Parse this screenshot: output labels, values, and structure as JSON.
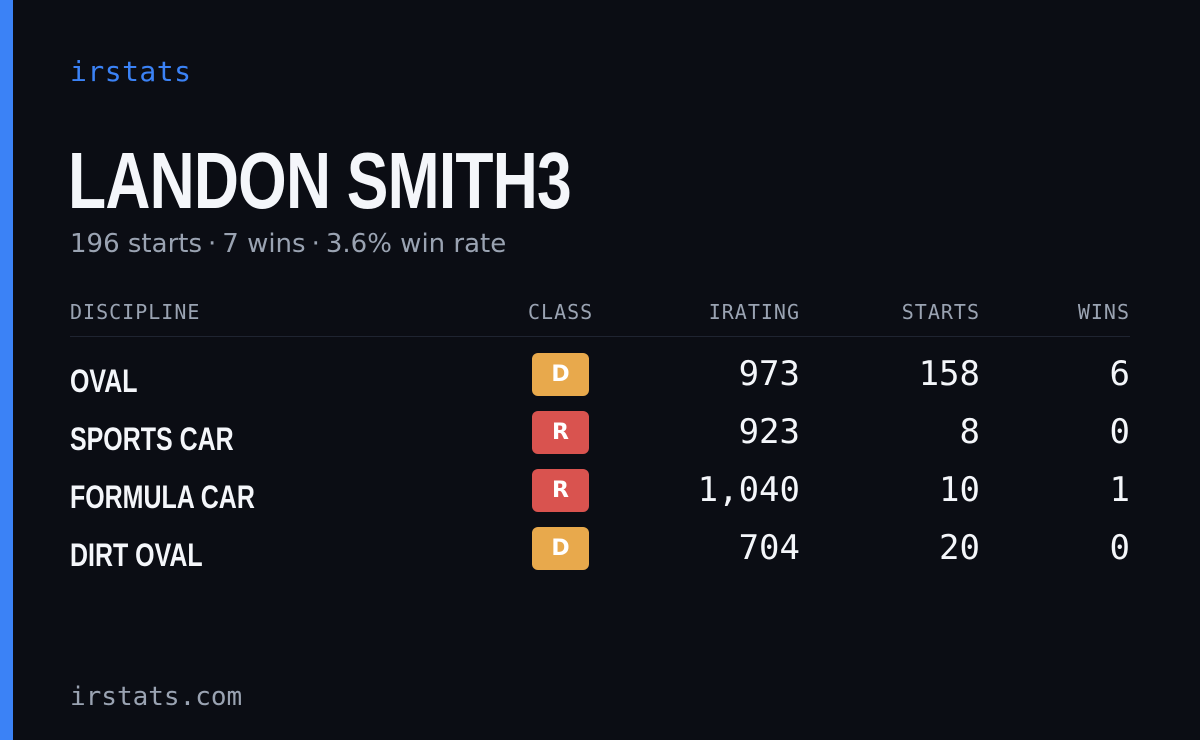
{
  "brand": "irstats",
  "player": {
    "name": "LANDON SMITH3",
    "starts_text": "196 starts",
    "wins_text": "7 wins",
    "win_rate_text": "3.6% win rate",
    "separator": "·"
  },
  "table": {
    "headers": {
      "discipline": "DISCIPLINE",
      "class": "CLASS",
      "irating": "IRATING",
      "starts": "STARTS",
      "wins": "WINS"
    },
    "rows": [
      {
        "discipline": "OVAL",
        "class": "D",
        "class_color": "#e8a94c",
        "irating": "973",
        "starts": "158",
        "wins": "6"
      },
      {
        "discipline": "SPORTS CAR",
        "class": "R",
        "class_color": "#d9534f",
        "irating": "923",
        "starts": "8",
        "wins": "0"
      },
      {
        "discipline": "FORMULA CAR",
        "class": "R",
        "class_color": "#d9534f",
        "irating": "1,040",
        "starts": "10",
        "wins": "1"
      },
      {
        "discipline": "DIRT OVAL",
        "class": "D",
        "class_color": "#e8a94c",
        "irating": "704",
        "starts": "20",
        "wins": "0"
      }
    ]
  },
  "footer": {
    "url": "irstats.com"
  },
  "colors": {
    "accent": "#3b82f6",
    "background": "#0b0d14",
    "muted_text": "#9aa3b2",
    "primary_text": "#f4f6fa"
  }
}
